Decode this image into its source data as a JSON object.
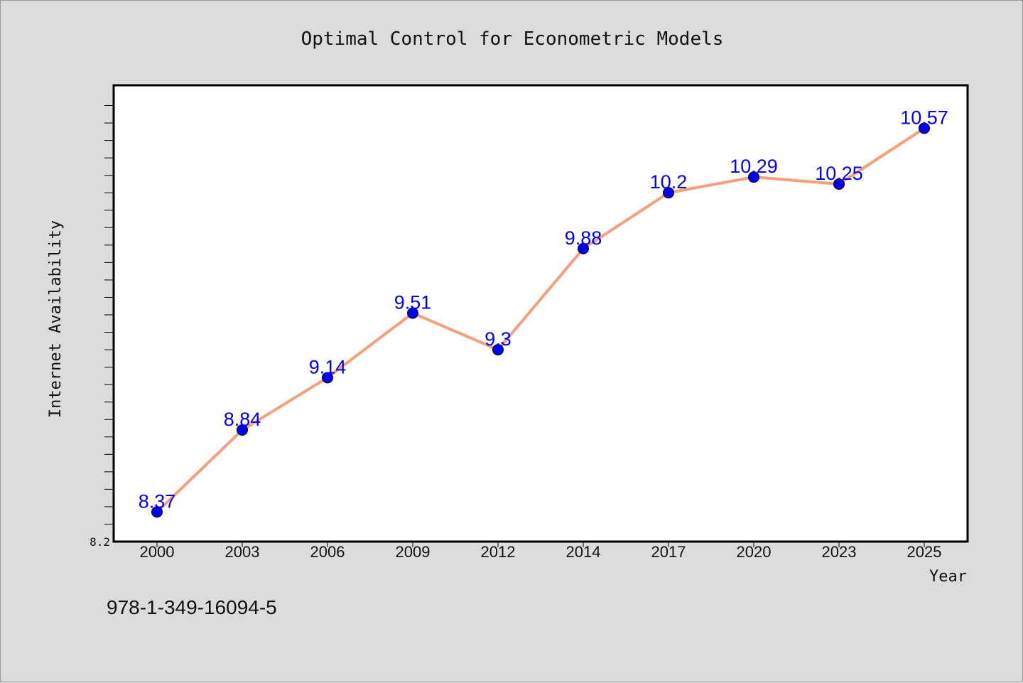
{
  "footer_text": "978-1-349-16094-5",
  "colors": {
    "background": "#dcdcdc",
    "plot_background": "#ffffff",
    "line": "#f4a07c",
    "marker": "#0000ee",
    "data_label": "#0000ee"
  },
  "chart_data": {
    "type": "line",
    "title": "Optimal Control for Econometric Models",
    "xlabel": "Year",
    "ylabel": "Internet Availability",
    "categories": [
      "2000",
      "2003",
      "2006",
      "2009",
      "2012",
      "2014",
      "2017",
      "2020",
      "2023",
      "2025"
    ],
    "series": [
      {
        "values": [
          8.37,
          8.84,
          9.14,
          9.51,
          9.3,
          9.88,
          10.2,
          10.29,
          10.25,
          10.57
        ],
        "labels": [
          "8.37",
          "8.84",
          "9.14",
          "9.51",
          "9.3",
          "9.88",
          "10.2",
          "10.29",
          "10.25",
          "10.57"
        ]
      }
    ],
    "ylim": [
      8.2,
      10.8
    ],
    "y_minor_step": 0.1,
    "y_tick_labels": [
      "8.2"
    ],
    "grid": false,
    "legend": "none"
  }
}
